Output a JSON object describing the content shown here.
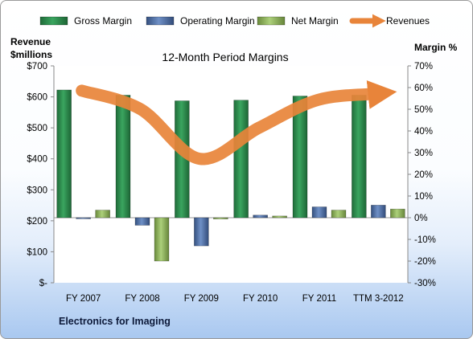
{
  "chart_data": {
    "type": "bar",
    "title": "12-Month Period Margins",
    "company": "Electronics for Imaging",
    "y_left_title": [
      "Revenue",
      "$millions"
    ],
    "y_right_title": "Margin %",
    "categories": [
      "FY 2007",
      "FY 2008",
      "FY 2009",
      "FY 2010",
      "FY 2011",
      "TTM 3-2012"
    ],
    "y_left_ticks": [
      "$-",
      "$100",
      "$200",
      "$300",
      "$400",
      "$500",
      "$600",
      "$700"
    ],
    "y_right_ticks": [
      "-30%",
      "-20%",
      "-10%",
      "0%",
      "10%",
      "20%",
      "30%",
      "40%",
      "50%",
      "60%",
      "70%"
    ],
    "ylim_left": [
      0,
      700
    ],
    "ylim_right": [
      -30,
      70
    ],
    "grid": false,
    "legend_position": "top",
    "series": [
      {
        "name": "Gross Margin",
        "type": "bar",
        "axis": "right",
        "values": [
          58.9,
          56.5,
          53.9,
          54.2,
          56.1,
          56.5
        ],
        "color": "#2e8b4e"
      },
      {
        "name": "Operating Margin",
        "type": "bar",
        "axis": "right",
        "values": [
          -0.5,
          -3.5,
          -13.0,
          1.2,
          5.0,
          5.8
        ],
        "color": "#4f6fa8"
      },
      {
        "name": "Net Margin",
        "type": "bar",
        "axis": "right",
        "values": [
          3.5,
          -20.0,
          -0.6,
          0.8,
          3.5,
          4.0
        ],
        "color": "#8db25a"
      },
      {
        "name": "Revenues",
        "type": "line",
        "axis": "left",
        "values": [
          620,
          560,
          400,
          500,
          590,
          610
        ],
        "color": "#e8843a"
      }
    ]
  }
}
